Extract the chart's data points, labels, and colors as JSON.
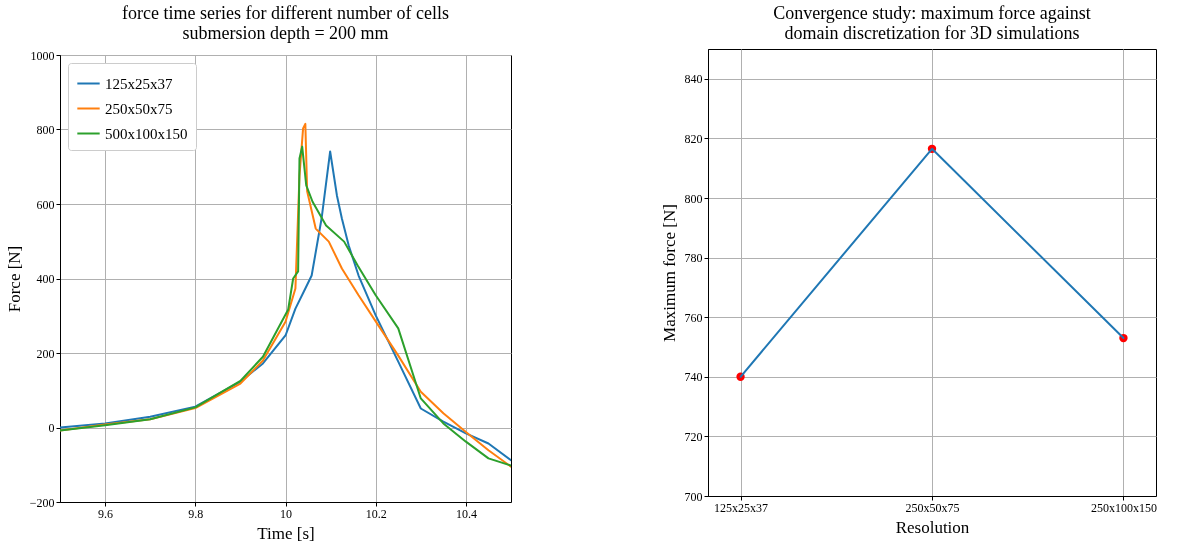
{
  "chart_data": [
    {
      "type": "line",
      "title": "force time series for different number of cells\nsubmersion depth = 200 mm",
      "xlabel": "Time [s]",
      "ylabel": "Force [N]",
      "xlim": [
        9.5,
        10.5
      ],
      "xticks": [
        9.6,
        9.8,
        10.0,
        10.2,
        10.4
      ],
      "ylim": [
        -200,
        1000
      ],
      "yticks": [
        {
          "value": -200,
          "label": "−200"
        },
        0,
        200,
        400,
        600,
        800,
        1000
      ],
      "grid": true,
      "legend": "top left",
      "line_style": "solid",
      "series": [
        {
          "name": "125x25x37",
          "color": "#1f77b4",
          "x": [
            9.5,
            9.6,
            9.7,
            9.8,
            9.9,
            9.95,
            10.0,
            10.022,
            10.044,
            10.058,
            10.08,
            10.099,
            10.114,
            10.125,
            10.14,
            10.162,
            10.2,
            10.25,
            10.3,
            10.35,
            10.4,
            10.45,
            10.5
          ],
          "values": [
            0,
            11,
            29,
            56,
            123,
            172,
            247,
            319,
            373,
            408,
            561,
            741,
            623,
            561,
            489,
            408,
            301,
            177,
            51,
            16,
            -16,
            -43,
            -88
          ]
        },
        {
          "name": "250x50x75",
          "color": "#ff7f0e",
          "x": [
            9.5,
            9.6,
            9.7,
            9.8,
            9.9,
            9.95,
            10.0,
            10.022,
            10.031,
            10.039,
            10.044,
            10.048,
            10.067,
            10.096,
            10.125,
            10.162,
            10.2,
            10.25,
            10.3,
            10.35,
            10.4,
            10.45,
            10.5
          ],
          "values": [
            -8,
            8,
            22,
            52,
            118,
            180,
            284,
            373,
            676,
            803,
            815,
            634,
            534,
            499,
            427,
            355,
            285,
            193,
            96,
            38,
            -12,
            -61,
            -105
          ]
        },
        {
          "name": "500x100x150",
          "color": "#2ca02c",
          "x": [
            9.5,
            9.6,
            9.7,
            9.8,
            9.9,
            9.95,
            10.006,
            10.017,
            10.028,
            10.031,
            10.037,
            10.046,
            10.06,
            10.09,
            10.13,
            10.16,
            10.2,
            10.25,
            10.3,
            10.35,
            10.4,
            10.45,
            10.5
          ],
          "values": [
            -8,
            6,
            22,
            54,
            125,
            190,
            317,
            400,
            419,
            722,
            754,
            650,
            606,
            542,
            499,
            435,
            355,
            266,
            78,
            11,
            -38,
            -83,
            -102
          ]
        }
      ]
    },
    {
      "type": "line",
      "title": "Convergence study: maximum force against\ndomain discretization for 3D simulations",
      "xlabel": "Resolution",
      "ylabel": "Maximum force [N]",
      "categories": [
        "125x25x37",
        "250x50x75",
        "250x100x150"
      ],
      "ylim": [
        700,
        850
      ],
      "yticks": [
        700,
        720,
        740,
        760,
        780,
        800,
        820,
        840
      ],
      "grid": true,
      "series": [
        {
          "type": "scatter",
          "color": "#ff0000",
          "values": [
            740.0,
            816.5,
            753.0
          ]
        },
        {
          "type": "line",
          "color": "#1f77b4",
          "values": [
            740.0,
            816.5,
            753.0
          ]
        }
      ]
    }
  ]
}
